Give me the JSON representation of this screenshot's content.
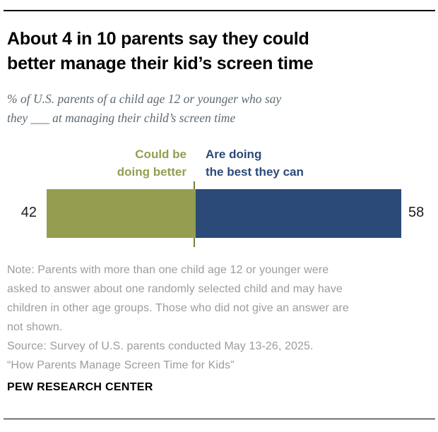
{
  "chart_data": {
    "type": "bar",
    "orientation": "horizontal",
    "stacked": true,
    "title": "About 4 in 10 parents say they could better manage their kid’s screen time",
    "subtitle": "% of U.S. parents of a child age 12 or younger who say they ___ at managing their child’s screen time",
    "categories": [
      "U.S. parents of a child age 12 or younger"
    ],
    "series": [
      {
        "name": "Could be doing better",
        "values": [
          42
        ],
        "color": "#959d50"
      },
      {
        "name": "Are doing the best they can",
        "values": [
          58
        ],
        "color": "#2b4a77"
      }
    ],
    "xlim": [
      0,
      100
    ],
    "value_label_position": "outside-ends",
    "legend_position": "above-bar",
    "grid": false
  },
  "header": {
    "title_line1": "About 4 in 10 parents say they could",
    "title_line2": "better manage their kid’s screen time",
    "subtitle_line1": "% of U.S. parents of a child age 12 or younger who say",
    "subtitle_line2": "they ___ at managing their child’s screen time"
  },
  "legend": {
    "left_line1": "Could be",
    "left_line2": "doing better",
    "right_line1": "Are doing",
    "right_line2": "the best they can"
  },
  "bar": {
    "left_value": "42",
    "right_value": "58"
  },
  "footer": {
    "note_lines": [
      "Note: Parents with more than one child age 12 or younger were",
      "asked to answer about one randomly selected child and may have",
      "children in other age groups. Those who did not give an answer are",
      "not shown.",
      "Source: Survey of U.S. parents conducted May 13-26, 2025.",
      "“How Parents Manage Screen Time for Kids”"
    ],
    "brand": "PEW RESEARCH CENTER"
  },
  "colors": {
    "olive": "#959d50",
    "olive_dark_divider": "#787d3c",
    "navy": "#2b4a77",
    "note_gray": "#9a9c9e",
    "subtitle_slate": "#5e6a72",
    "rule_black": "#000000"
  }
}
